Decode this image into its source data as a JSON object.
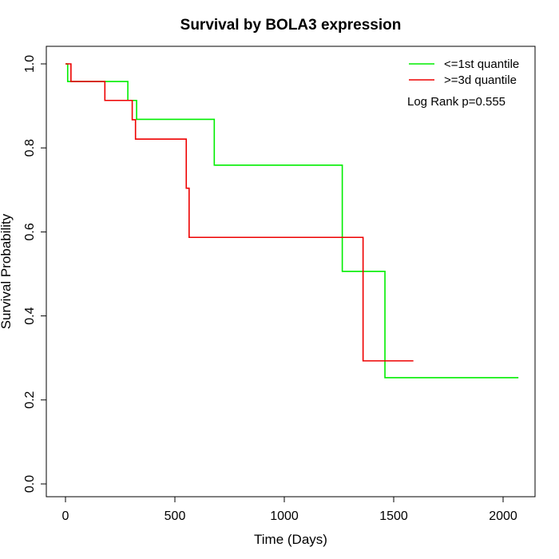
{
  "chart_data": {
    "type": "line",
    "title": "Survival by BOLA3 expression",
    "xlabel": "Time (Days)",
    "ylabel": "Survival Probability",
    "xlim": [
      0,
      2070
    ],
    "ylim": [
      0,
      1.0
    ],
    "x_ticks": [
      0,
      500,
      1000,
      1500,
      2000
    ],
    "x_tick_labels": [
      "0",
      "500",
      "1000",
      "1500",
      "2000"
    ],
    "y_ticks": [
      0.0,
      0.2,
      0.4,
      0.6,
      0.8,
      1.0
    ],
    "y_tick_labels": [
      "0.0",
      "0.2",
      "0.4",
      "0.6",
      "0.8",
      "1.0"
    ],
    "legend_position": "top-right",
    "annotation": "Log Rank p=0.555",
    "series": [
      {
        "name": "<=1st quantile",
        "color": "#00ee00",
        "steps": [
          [
            0,
            1.0
          ],
          [
            10,
            0.958
          ],
          [
            285,
            0.913
          ],
          [
            325,
            0.868
          ],
          [
            680,
            0.759
          ],
          [
            1265,
            0.506
          ],
          [
            1460,
            0.253
          ],
          [
            2070,
            0.253
          ]
        ]
      },
      {
        "name": ">=3d quantile",
        "color": "#ee0000",
        "steps": [
          [
            0,
            1.0
          ],
          [
            25,
            0.958
          ],
          [
            180,
            0.913
          ],
          [
            305,
            0.867
          ],
          [
            320,
            0.821
          ],
          [
            552,
            0.704
          ],
          [
            565,
            0.587
          ],
          [
            1360,
            0.293
          ],
          [
            1590,
            0.293
          ]
        ]
      }
    ]
  }
}
